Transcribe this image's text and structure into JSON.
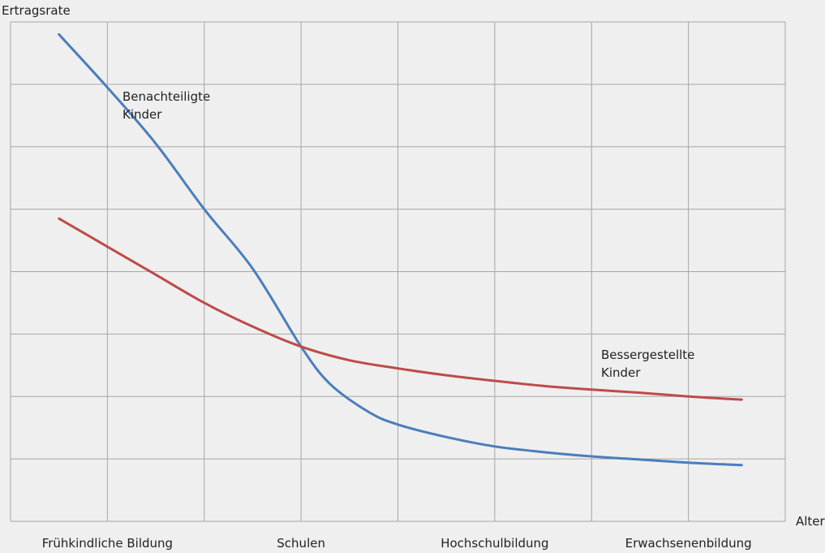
{
  "chart_data": {
    "type": "line",
    "title": "",
    "ylabel": "Ertragsrate",
    "xlabel": "Alter",
    "categories": [
      "Frühkindliche Bildung",
      "Schulen",
      "Hochschulbildung",
      "Erwachsenenbildung"
    ],
    "xlim": [
      0,
      8
    ],
    "ylim": [
      0,
      8
    ],
    "grid": true,
    "series": [
      {
        "name": "Benachteiligte Kinder",
        "label_lines": [
          "Benachteiligte",
          "Kinder"
        ],
        "color": "#4a7ebb",
        "x": [
          0.5,
          1.0,
          1.5,
          2.0,
          2.5,
          3.0,
          3.3,
          3.7,
          4.0,
          4.5,
          5.0,
          5.5,
          6.0,
          6.5,
          7.0,
          7.55
        ],
        "y": [
          7.8,
          6.95,
          6.05,
          5.0,
          4.05,
          2.8,
          2.2,
          1.75,
          1.55,
          1.35,
          1.2,
          1.11,
          1.04,
          0.99,
          0.94,
          0.9
        ]
      },
      {
        "name": "Bessergestellte Kinder",
        "label_lines": [
          "Bessergestellte",
          "Kinder"
        ],
        "color": "#be4b48",
        "x": [
          0.5,
          1.0,
          1.5,
          2.0,
          2.5,
          3.0,
          3.5,
          4.0,
          4.5,
          5.0,
          5.5,
          6.0,
          6.5,
          7.0,
          7.55
        ],
        "y": [
          4.85,
          4.4,
          3.95,
          3.5,
          3.12,
          2.8,
          2.58,
          2.45,
          2.34,
          2.25,
          2.17,
          2.11,
          2.06,
          2.0,
          1.95
        ]
      }
    ]
  }
}
